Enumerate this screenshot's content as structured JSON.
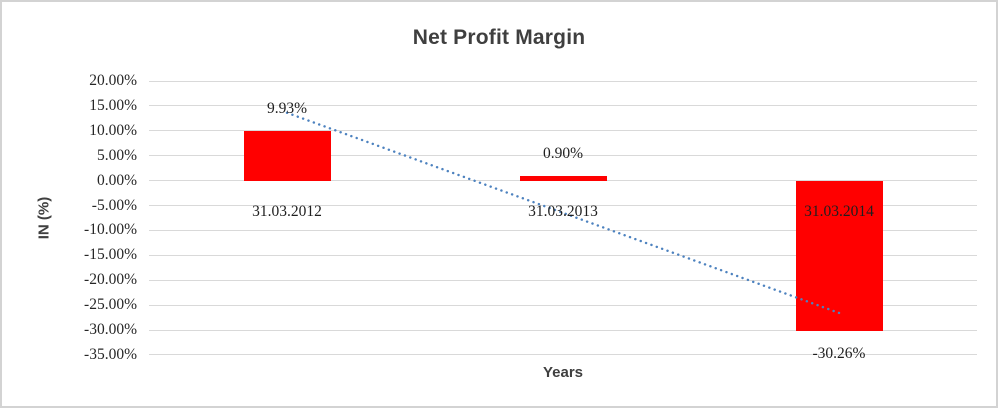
{
  "chart": {
    "title": "Net Profit Margin",
    "x_axis_title": "Years",
    "y_axis_title": "IN (%)"
  },
  "chart_data": {
    "type": "bar",
    "title": "Net Profit Margin",
    "xlabel": "Years",
    "ylabel": "IN (%)",
    "categories": [
      "31.03.2012",
      "31.03.2013",
      "31.03.2014"
    ],
    "values": [
      9.93,
      0.9,
      -30.26
    ],
    "value_labels": [
      "9.93%",
      "0.90%",
      "-30.26%"
    ],
    "ylim": [
      -35,
      20
    ],
    "ytick_step": 5,
    "ytick_labels": [
      "20.00%",
      "15.00%",
      "10.00%",
      "5.00%",
      "0.00%",
      "-5.00%",
      "-10.00%",
      "-15.00%",
      "-20.00%",
      "-25.00%",
      "-30.00%",
      "-35.00%"
    ],
    "grid": true,
    "legend": "none",
    "bar_color": "#ff0000",
    "gridline_color": "#d9d9d9",
    "trendline": {
      "type": "linear",
      "style": "dotted",
      "color": "#4d82bf"
    }
  }
}
